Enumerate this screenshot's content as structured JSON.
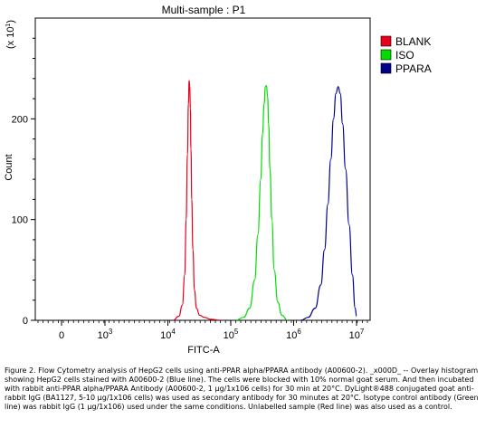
{
  "chart_data": {
    "type": "line",
    "title": "Multi-sample : P1",
    "xlabel": "FITC-A",
    "ylabel": "Count",
    "y_multiplier_label": "(x 10",
    "y_multiplier_exp": "1",
    "y_multiplier_close": ")",
    "x_scale": "log",
    "y_ticks": [
      {
        "value": 0,
        "label": "0"
      },
      {
        "value": 100,
        "label": "100"
      },
      {
        "value": 200,
        "label": "200"
      }
    ],
    "ylim": [
      0,
      300
    ],
    "x_ticks": [
      {
        "value": 0,
        "label": "0"
      },
      {
        "value": 1000,
        "base": "10",
        "exp": "3"
      },
      {
        "value": 10000,
        "base": "10",
        "exp": "4"
      },
      {
        "value": 100000,
        "base": "10",
        "exp": "5"
      },
      {
        "value": 1000000,
        "base": "10",
        "exp": "6"
      },
      {
        "value": 10000000,
        "base": "10",
        "exp": "7"
      }
    ],
    "legend_position": "top-right",
    "series": [
      {
        "name": "BLANK",
        "color": "#e8001c",
        "x": [
          12000,
          15000,
          17000,
          18500,
          19500,
          20500,
          21200,
          21800,
          22300,
          22800,
          23300,
          24000,
          25000,
          26500,
          28500,
          32000,
          38000,
          48000,
          70000
        ],
        "y": [
          0,
          4,
          15,
          45,
          100,
          165,
          215,
          238,
          232,
          210,
          170,
          120,
          70,
          30,
          12,
          5,
          3,
          1,
          0
        ]
      },
      {
        "name": "ISO",
        "color": "#00dd00",
        "x": [
          120000,
          160000,
          200000,
          240000,
          270000,
          300000,
          320000,
          340000,
          355000,
          370000,
          385000,
          400000,
          420000,
          450000,
          490000,
          560000,
          650000,
          800000
        ],
        "y": [
          0,
          3,
          12,
          40,
          85,
          140,
          185,
          215,
          232,
          233,
          222,
          195,
          150,
          100,
          50,
          18,
          5,
          0
        ]
      },
      {
        "name": "PPARA",
        "color": "#00008b",
        "x": [
          1300000,
          1700000,
          2200000,
          2700000,
          3100000,
          3500000,
          3900000,
          4300000,
          4700000,
          5100000,
          5500000,
          6000000,
          6700000,
          7600000,
          8600000,
          9500000,
          10000000
        ],
        "y": [
          0,
          3,
          12,
          35,
          70,
          115,
          160,
          200,
          225,
          232,
          225,
          195,
          150,
          95,
          45,
          12,
          4
        ]
      }
    ]
  },
  "caption": "Figure 2. Flow Cytometry analysis of HepG2 cells using anti-PPAR alpha/PPARA antibody (A00600-2). _x000D_ -- Overlay histogram showing HepG2 cells stained with A00600-2 (Blue line). The cells were blocked with 10% normal goat serum.  And then incubated with rabbit anti-PPAR alpha/PPARA Antibody (A00600-2, 1 μg/1x106 cells) for 30 min at 20°C. DyLight®488 conjugated goat anti-rabbit IgG (BA1127, 5-10 μg/1x106 cells) was used as secondary antibody for 30 minutes at 20°C. Isotype control antibody (Green line) was rabbit IgG (1 μg/1x106) used under the same conditions. Unlabelled sample (Red line) was also used as a control."
}
